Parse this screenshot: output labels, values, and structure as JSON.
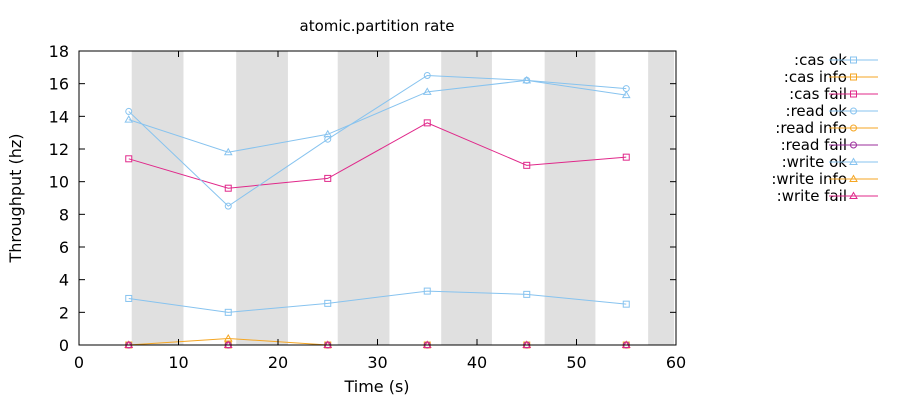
{
  "chart_data": {
    "type": "line",
    "title": "atomic.partition rate",
    "xlabel": "Time (s)",
    "ylabel": "Throughput (hz)",
    "xlim": [
      0,
      60
    ],
    "ylim": [
      0,
      18
    ],
    "xticks": [
      0,
      10,
      20,
      30,
      40,
      50,
      60
    ],
    "yticks": [
      0,
      2,
      4,
      6,
      8,
      10,
      12,
      14,
      16,
      18
    ],
    "legend_position": "outside-right",
    "grid": false,
    "shaded_intervals": [
      [
        5.3,
        10.5
      ],
      [
        15.8,
        21.0
      ],
      [
        26.0,
        31.2
      ],
      [
        36.4,
        41.5
      ],
      [
        46.8,
        51.9
      ],
      [
        57.2,
        59.8
      ]
    ],
    "shade_color": "#e0e0e0",
    "x": [
      5,
      15,
      25,
      35,
      45,
      55
    ],
    "series": [
      {
        "name": ":cas ok",
        "color": "#87c3ef",
        "marker": "square",
        "values": [
          2.85,
          2.0,
          2.55,
          3.3,
          3.1,
          2.5
        ]
      },
      {
        "name": ":cas info",
        "color": "#f5a623",
        "marker": "square",
        "values": [
          0,
          0,
          0,
          0,
          0,
          0
        ]
      },
      {
        "name": ":cas fail",
        "color": "#e0288a",
        "marker": "square",
        "values": [
          11.4,
          9.6,
          10.2,
          13.6,
          11.0,
          11.5
        ]
      },
      {
        "name": ":read ok",
        "color": "#87c3ef",
        "marker": "circle",
        "values": [
          14.3,
          8.5,
          12.6,
          16.5,
          16.2,
          15.7
        ]
      },
      {
        "name": ":read info",
        "color": "#f5a623",
        "marker": "circle",
        "values": [
          0,
          0,
          0,
          0,
          0,
          0
        ]
      },
      {
        "name": ":read fail",
        "color": "#9b2d9b",
        "marker": "circle",
        "values": [
          0,
          0,
          0,
          0,
          0,
          0
        ]
      },
      {
        "name": ":write ok",
        "color": "#87c3ef",
        "marker": "triangle",
        "values": [
          13.8,
          11.8,
          12.9,
          15.5,
          16.2,
          15.3
        ]
      },
      {
        "name": ":write info",
        "color": "#f5a623",
        "marker": "triangle",
        "values": [
          0,
          0.4,
          0,
          0,
          0,
          0
        ]
      },
      {
        "name": ":write fail",
        "color": "#e0288a",
        "marker": "triangle",
        "values": [
          0,
          0,
          0,
          0,
          0,
          0
        ]
      }
    ]
  }
}
